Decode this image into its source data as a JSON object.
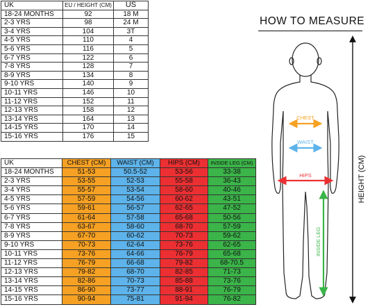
{
  "table1": {
    "headers": [
      "UK",
      "EU / HEIGHT (CM)",
      "US"
    ],
    "rows": [
      [
        "18-24 MONTHS",
        "92",
        "18 M"
      ],
      [
        "2-3 YRS",
        "98",
        "24 M"
      ],
      [
        "3-4 YRS",
        "104",
        "3T"
      ],
      [
        "4-5 YRS",
        "110",
        "4"
      ],
      [
        "5-6 YRS",
        "116",
        "5"
      ],
      [
        "6-7 YRS",
        "122",
        "6"
      ],
      [
        "7-8 YRS",
        "128",
        "7"
      ],
      [
        "8-9 YRS",
        "134",
        "8"
      ],
      [
        "9-10 YRS",
        "140",
        "9"
      ],
      [
        "10-11 YRS",
        "146",
        "10"
      ],
      [
        "11-12 YRS",
        "152",
        "11"
      ],
      [
        "12-13 YRS",
        "158",
        "12"
      ],
      [
        "13-14 YRS",
        "164",
        "13"
      ],
      [
        "14-15 YRS",
        "170",
        "14"
      ],
      [
        "15-16 YRS",
        "176",
        "15"
      ]
    ]
  },
  "table2": {
    "headers": [
      "UK",
      "CHEST (CM)",
      "WAIST (CM)",
      "HIPS (CM)",
      "INSIDE LEG (CM)"
    ],
    "rows": [
      [
        "18-24 MONTHS",
        "51-53",
        "50.5-52",
        "53-56",
        "33-38"
      ],
      [
        "2-3 YRS",
        "53-55",
        "52-53",
        "55-58",
        "36-43"
      ],
      [
        "3-4 YRS",
        "55-57",
        "53-54",
        "58-60",
        "40-46"
      ],
      [
        "4-5 YRS",
        "57-59",
        "54-56",
        "60-62",
        "43-51"
      ],
      [
        "5-6 YRS",
        "59-61",
        "56-57",
        "62-65",
        "47-52"
      ],
      [
        "6-7 YRS",
        "61-64",
        "57-58",
        "65-68",
        "50-56"
      ],
      [
        "7-8 YRS",
        "63-67",
        "58-60",
        "68-70",
        "57-59"
      ],
      [
        "8-9 YRS",
        "67-70",
        "60-62",
        "70-73",
        "59-62"
      ],
      [
        "9-10 YRS",
        "70-73",
        "62-64",
        "73-76",
        "62-65"
      ],
      [
        "10-11 YRS",
        "73-76",
        "64-66",
        "76-79",
        "65-68"
      ],
      [
        "11-12 YRS",
        "76-79",
        "66-68",
        "79-82",
        "68-70.5"
      ],
      [
        "12-13 YRS",
        "79-82",
        "68-70",
        "82-85",
        "71-73"
      ],
      [
        "13-14 YRS",
        "82-86",
        "70-73",
        "85-88",
        "73-76"
      ],
      [
        "14-15 YRS",
        "86-90",
        "73-77",
        "88-91",
        "76-79"
      ],
      [
        "15-16 YRS",
        "90-94",
        "75-81",
        "91-94",
        "76-82"
      ]
    ]
  },
  "measure": {
    "title": "HOW TO MEASURE",
    "chest_label": "CHEST",
    "waist_label": "WAIST",
    "hips_label": "HIPS",
    "leg_label": "INSIDE LEG",
    "height_label": "HEIGHT (CM)",
    "colors": {
      "chest": "#f6a123",
      "waist": "#5db3ea",
      "hips": "#ec2f32",
      "leg": "#3bb449"
    }
  }
}
